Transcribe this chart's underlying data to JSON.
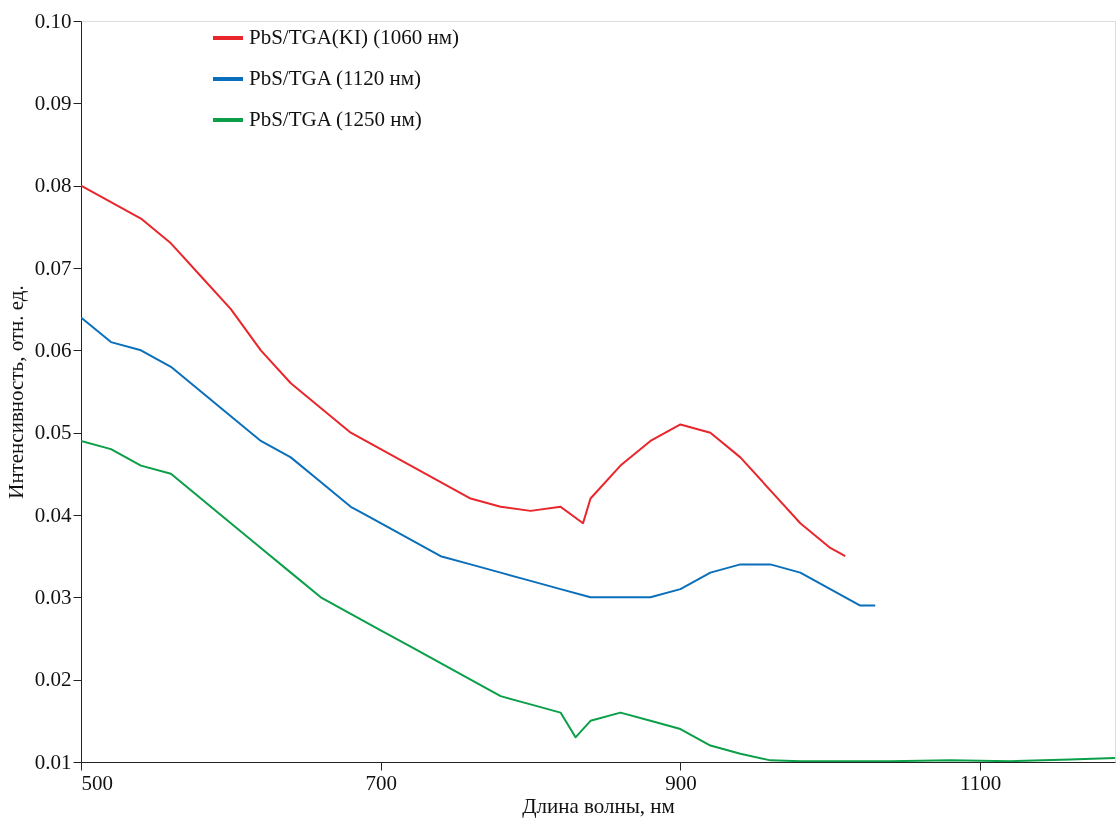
{
  "chart_data": {
    "type": "line",
    "xlabel": "Длина волны, нм",
    "ylabel": "Интенсивность, отн. ед.",
    "xlim": [
      500,
      1190
    ],
    "xticks": [
      500,
      700,
      900,
      1100
    ],
    "ylim": [
      0.01,
      0.1
    ],
    "yticks": [
      0.01,
      0.02,
      0.03,
      0.04,
      0.05,
      0.06,
      0.07,
      0.08,
      0.09,
      {
        "value": 0.1,
        "label": "0.10"
      }
    ],
    "grid": false,
    "legend": "top",
    "line_style": "solid",
    "marker": "none",
    "x": [
      500,
      520,
      540,
      560,
      580,
      600,
      620,
      640,
      660,
      680,
      700,
      720,
      740,
      760,
      780,
      800,
      820,
      835,
      840,
      860,
      880,
      900,
      920,
      940,
      960,
      980,
      1000,
      1010
    ],
    "series": [
      {
        "name": "PbS/TGA(KI) (1060 нм)",
        "color": "#e8262b",
        "values": [
          0.08,
          0.078,
          0.076,
          0.073,
          0.069,
          0.065,
          0.06,
          0.056,
          0.053,
          0.05,
          0.048,
          0.046,
          0.044,
          0.042,
          0.041,
          0.0405,
          0.041,
          0.039,
          0.042,
          0.046,
          0.049,
          0.051,
          0.05,
          0.047,
          0.043,
          0.039,
          0.036,
          0.035
        ]
      },
      {
        "name": "PbS/TGA (1120 нм)",
        "color": "#0a6fba",
        "x": [
          500,
          520,
          540,
          560,
          580,
          600,
          620,
          640,
          660,
          680,
          700,
          720,
          740,
          760,
          780,
          800,
          820,
          840,
          860,
          880,
          900,
          920,
          940,
          960,
          980,
          1000,
          1020,
          1030
        ],
        "values": [
          0.064,
          0.061,
          0.06,
          0.058,
          0.055,
          0.052,
          0.049,
          0.047,
          0.044,
          0.041,
          0.039,
          0.037,
          0.035,
          0.034,
          0.033,
          0.032,
          0.031,
          0.03,
          0.03,
          0.03,
          0.031,
          0.033,
          0.034,
          0.034,
          0.033,
          0.031,
          0.029,
          0.029
        ]
      },
      {
        "name": "PbS/TGA (1250 нм)",
        "color": "#0a9f48",
        "x": [
          500,
          520,
          540,
          560,
          580,
          600,
          620,
          640,
          660,
          680,
          700,
          720,
          740,
          760,
          780,
          800,
          820,
          830,
          840,
          860,
          880,
          900,
          920,
          940,
          960,
          980,
          1000,
          1040,
          1080,
          1120,
          1160,
          1190
        ],
        "values": [
          0.049,
          0.048,
          0.046,
          0.045,
          0.042,
          0.039,
          0.036,
          0.033,
          0.03,
          0.028,
          0.026,
          0.024,
          0.022,
          0.02,
          0.018,
          0.017,
          0.016,
          0.013,
          0.015,
          0.016,
          0.015,
          0.014,
          0.012,
          0.011,
          0.0102,
          0.0101,
          0.0101,
          0.0101,
          0.0102,
          0.0101,
          0.0103,
          0.0105
        ]
      }
    ]
  }
}
